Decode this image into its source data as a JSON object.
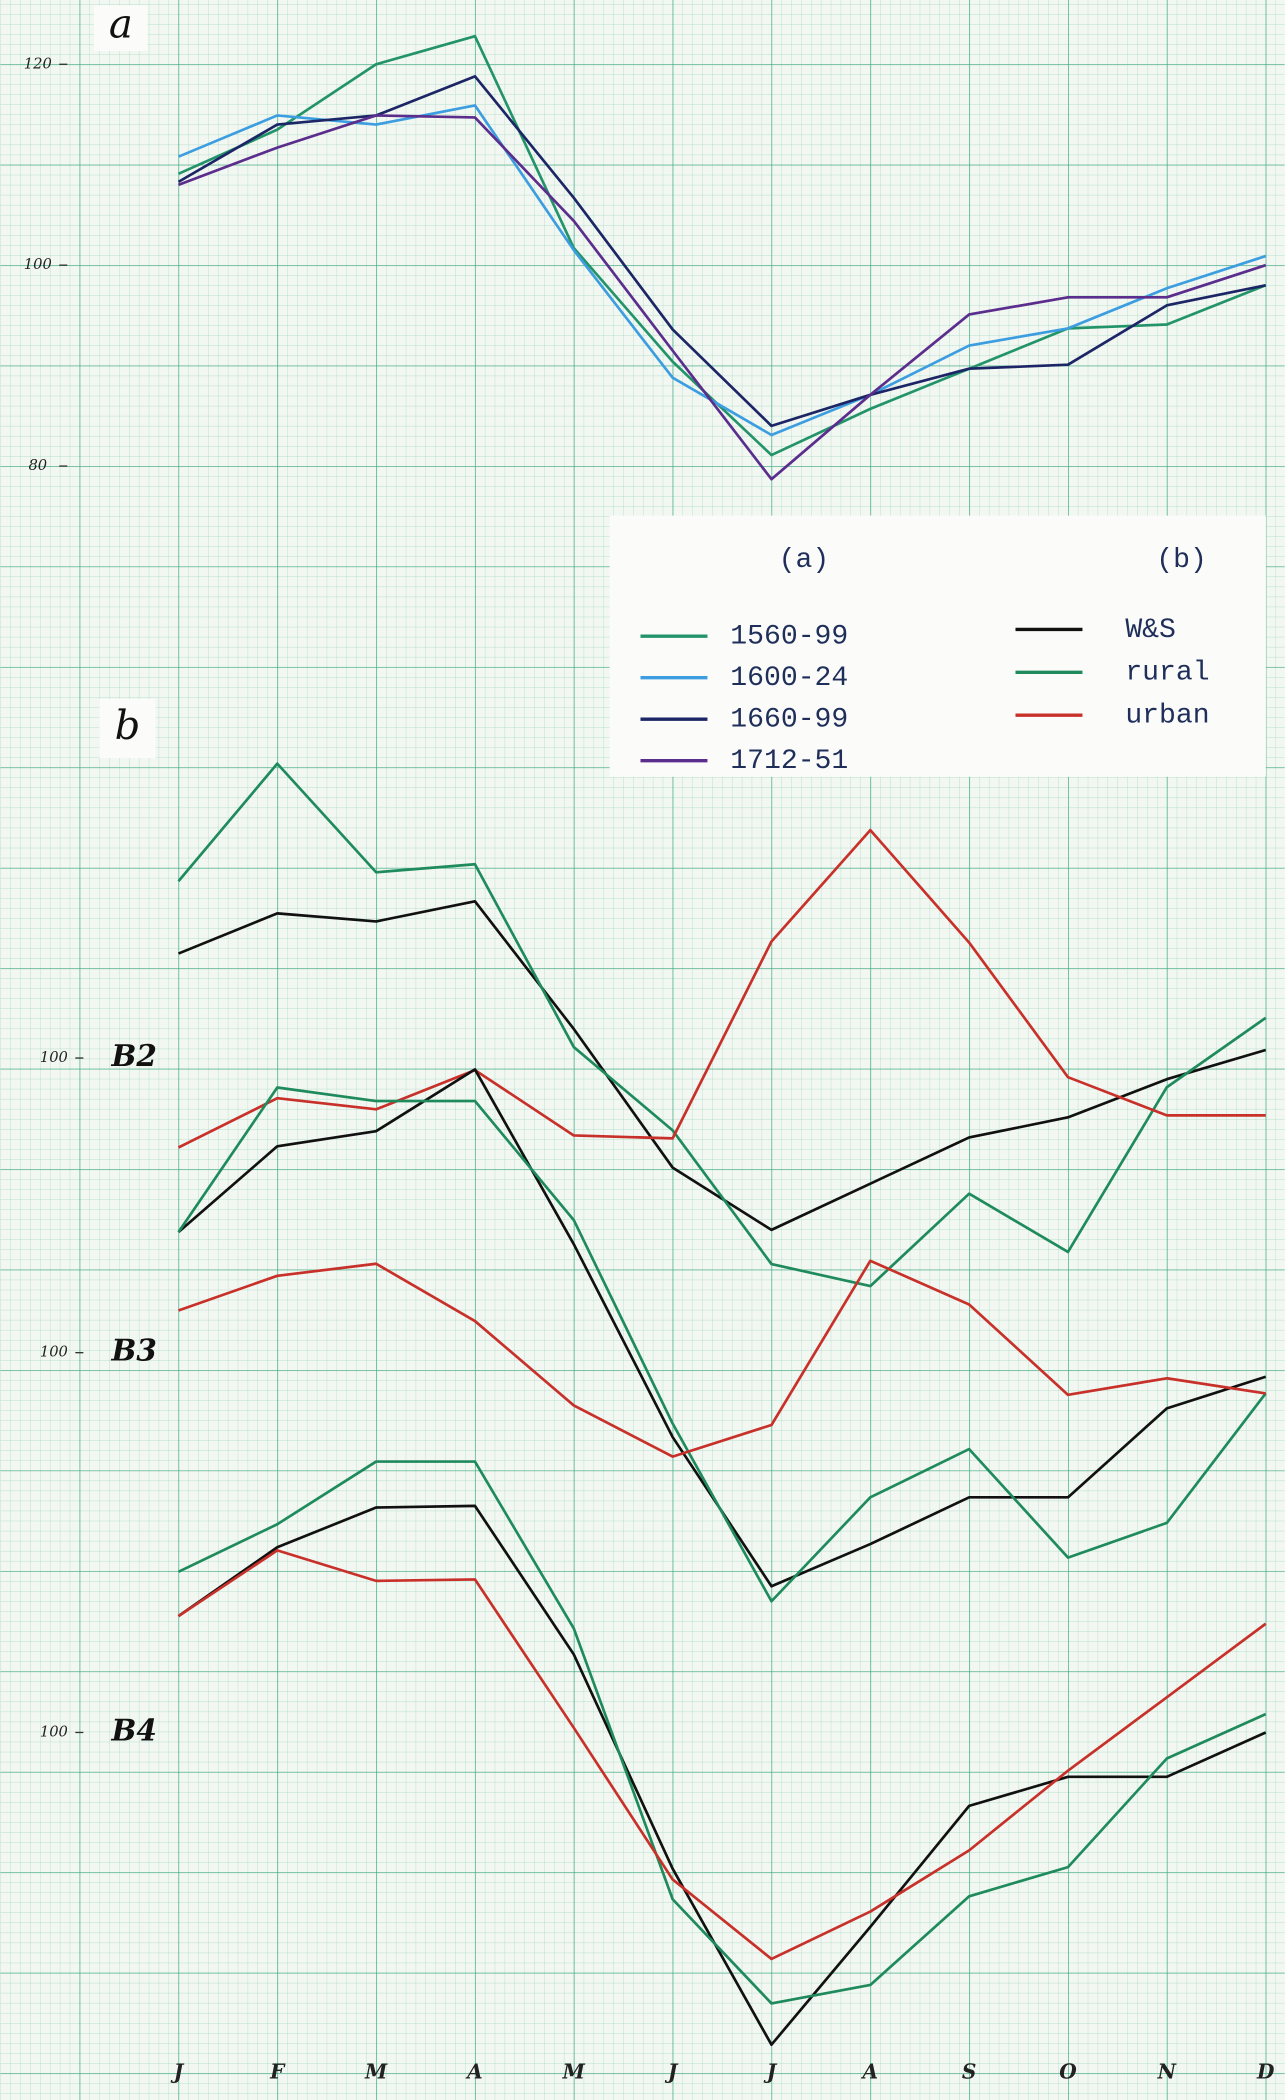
{
  "chart_data": {
    "type": "line",
    "categories": [
      "J",
      "F",
      "M",
      "A",
      "M",
      "J",
      "J",
      "A",
      "S",
      "O",
      "N",
      "D"
    ],
    "groups": [
      {
        "label": "a",
        "legend_title": "(a)",
        "series": [
          {
            "name": "1560-99",
            "color": "#23936a"
          },
          {
            "name": "1600-24",
            "color": "#3c9ee0"
          },
          {
            "name": "1660-99",
            "color": "#1c2566"
          },
          {
            "name": "1712-51",
            "color": "#5b2d8c"
          }
        ],
        "panels": [
          {
            "ylim": [
              74,
              126
            ],
            "yticks": [
              80,
              100,
              120
            ],
            "values": [
              [
                109.1,
                113.5,
                120,
                122.8,
                101.7,
                90.4,
                81.1,
                85.7,
                89.7,
                93.7,
                94.1,
                98
              ],
              [
                110.8,
                114.9,
                114,
                115.9,
                101.5,
                88.8,
                83.1,
                87.1,
                92,
                93.7,
                97.7,
                100.9
              ],
              [
                108.3,
                114,
                114.9,
                118.8,
                106.7,
                93.6,
                84,
                87.1,
                89.7,
                90.1,
                96,
                98
              ],
              [
                108,
                111.7,
                114.9,
                114.7,
                104.4,
                91.5,
                78.7,
                87.1,
                95.1,
                96.8,
                96.8,
                100
              ]
            ]
          }
        ]
      },
      {
        "label": "b",
        "legend_title": "(b)",
        "series": [
          {
            "name": "W&S",
            "color": "#111111"
          },
          {
            "name": "rural",
            "color": "#1f8a5c"
          },
          {
            "name": "urban",
            "color": "#c8302a"
          }
        ],
        "panels": [
          {
            "label": "B2",
            "ylim": [
              76,
              130
            ],
            "yticks": [
              100
            ],
            "values": [
              [
                110.4,
                114.4,
                113.6,
                115.6,
                102.9,
                89.1,
                82.9,
                87.5,
                92.1,
                94.1,
                97.9,
                100.8
              ],
              [
                117.6,
                129.3,
                118.5,
                119.3,
                101.1,
                92.8,
                79.5,
                77.3,
                86.5,
                80.7,
                97.1,
                104
              ],
              [
                91.1,
                96,
                94.9,
                98.8,
                92.3,
                92,
                111.6,
                122.7,
                111.5,
                98.1,
                94.3,
                94.3
              ]
            ]
          },
          {
            "label": "B3",
            "ylim": [
              80,
              120
            ],
            "yticks": [
              100
            ],
            "values": [
              [
                108,
                113.7,
                114.7,
                118.8,
                107.2,
                94.4,
                84.5,
                87.3,
                90.4,
                90.4,
                96.3,
                98.4
              ],
              [
                108,
                117.6,
                116.7,
                116.7,
                108.8,
                95.3,
                83.5,
                90.4,
                93.6,
                86.4,
                88.7,
                97.3
              ],
              [
                102.8,
                105.1,
                105.9,
                102.1,
                96.5,
                93.1,
                95.2,
                106.1,
                103.2,
                97.2,
                98.3,
                97.3
              ]
            ]
          },
          {
            "label": "B4",
            "ylim": [
              78,
              120
            ],
            "yticks": [
              100
            ],
            "values": [
              [
                107.6,
                112.1,
                114.7,
                114.8,
                105.1,
                91.1,
                79.6,
                87.3,
                95.2,
                97.1,
                97.1,
                100
              ],
              [
                110.5,
                113.6,
                117.7,
                117.7,
                106.8,
                89.1,
                82.3,
                83.5,
                89.3,
                91.2,
                98.3,
                101.2
              ],
              [
                107.6,
                111.9,
                109.9,
                110,
                100.3,
                90.4,
                85.2,
                88.3,
                92.3,
                97.5,
                102.3,
                107.1
              ]
            ]
          }
        ]
      }
    ]
  }
}
